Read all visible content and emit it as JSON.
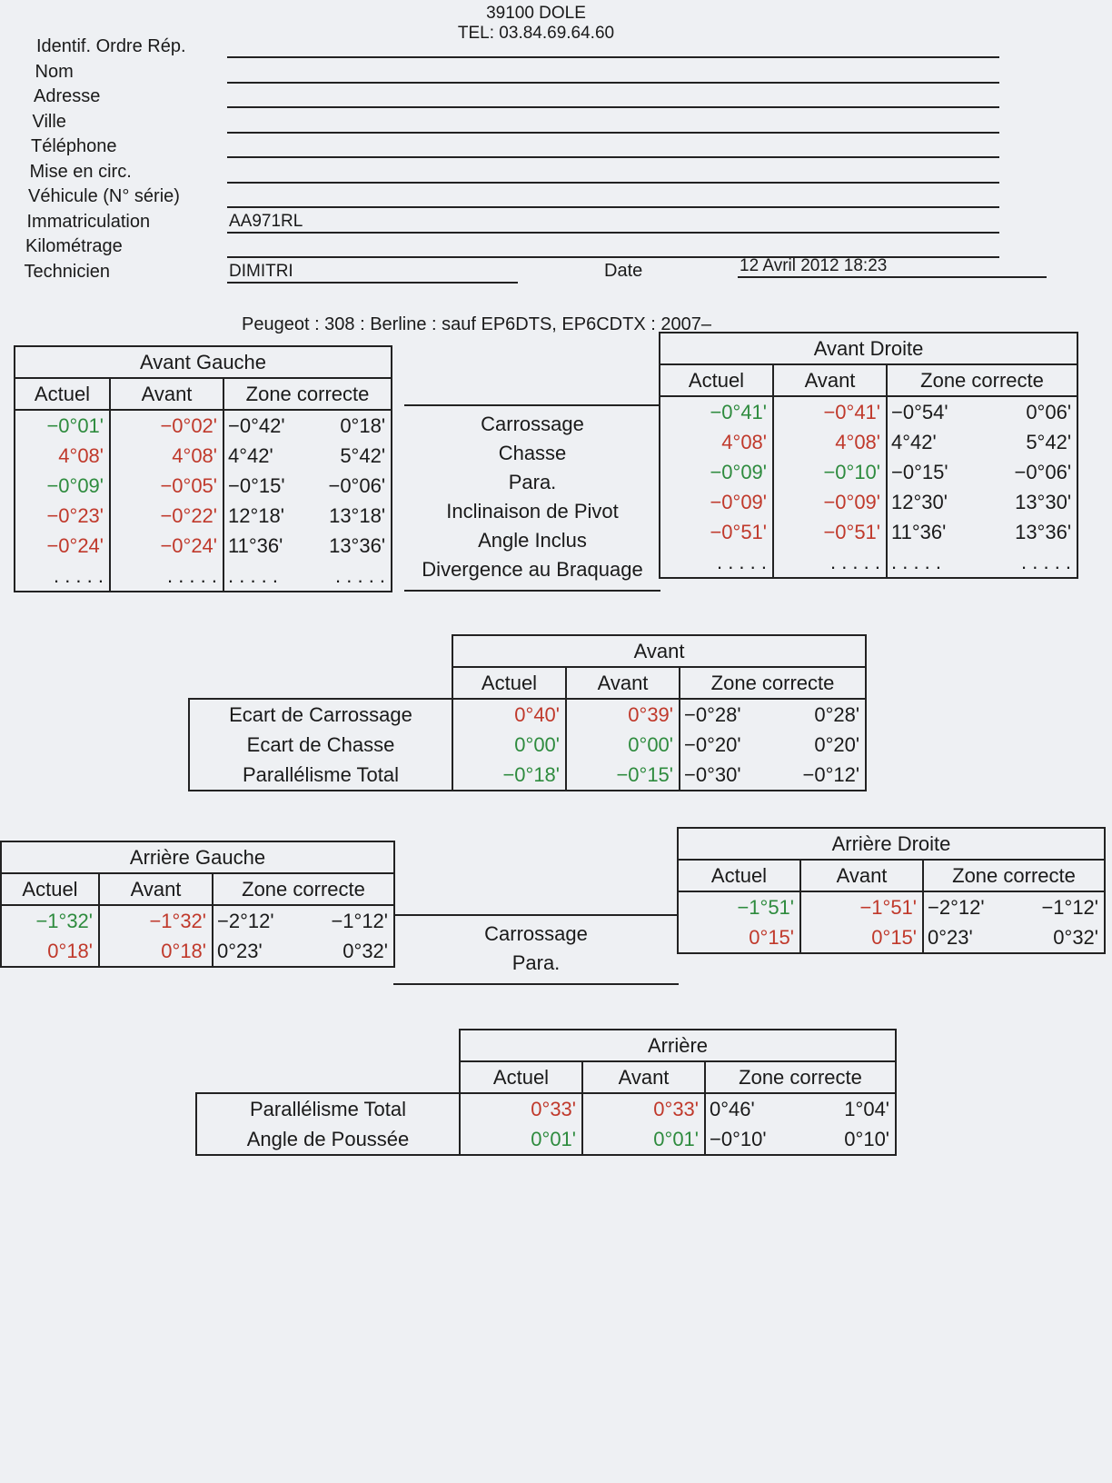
{
  "header": {
    "lines": [
      "39100 DOLE",
      "TEL: 03.84.69.64.60"
    ]
  },
  "fields": [
    {
      "label": "Identif. Ordre Rép."
    },
    {
      "label": "Nom"
    },
    {
      "label": "Adresse"
    },
    {
      "label": "Ville"
    },
    {
      "label": "Téléphone"
    },
    {
      "label": "Mise en circ."
    },
    {
      "label": "Véhicule (N° série)"
    },
    {
      "label": "Immatriculation",
      "value": "AA971RL"
    },
    {
      "label": "Kilométrage"
    },
    {
      "label": "Technicien",
      "value": "DIMITRI"
    }
  ],
  "date": {
    "label": "Date",
    "value": "12 Avril 2012 18:23"
  },
  "vehicle": "Peugeot : 308 : Berline : sauf EP6DTS, EP6CDTX : 2007–",
  "front": {
    "labels": [
      "Carrossage",
      "Chasse",
      "Para.",
      "Inclinaison de Pivot",
      "Angle Inclus",
      "Divergence au Braquage"
    ],
    "left": {
      "title": "Avant Gauche",
      "columns": [
        "Actuel",
        "Avant",
        "Zone correcte"
      ],
      "rows": [
        {
          "actual": {
            "text": "−0°01'",
            "color": "#2e8b3e"
          },
          "before": {
            "text": "−0°02'",
            "color": "#c0392b"
          },
          "min": "−0°42'",
          "max": "0°18'"
        },
        {
          "actual": {
            "text": "4°08'",
            "color": "#c0392b"
          },
          "before": {
            "text": "4°08'",
            "color": "#c0392b"
          },
          "min": "4°42'",
          "max": "5°42'"
        },
        {
          "actual": {
            "text": "−0°09'",
            "color": "#2e8b3e"
          },
          "before": {
            "text": "−0°05'",
            "color": "#c0392b"
          },
          "min": "−0°15'",
          "max": "−0°06'"
        },
        {
          "actual": {
            "text": "−0°23'",
            "color": "#c0392b"
          },
          "before": {
            "text": "−0°22'",
            "color": "#c0392b"
          },
          "min": "12°18'",
          "max": "13°18'"
        },
        {
          "actual": {
            "text": "−0°24'",
            "color": "#c0392b"
          },
          "before": {
            "text": "−0°24'",
            "color": "#c0392b"
          },
          "min": "11°36'",
          "max": "13°36'"
        },
        {
          "actual": {
            "text": ". . . . ."
          },
          "before": {
            "text": ". . . . ."
          },
          "min": ". . . . .",
          "max": ". . . . ."
        }
      ]
    },
    "right": {
      "title": "Avant Droite",
      "columns": [
        "Actuel",
        "Avant",
        "Zone correcte"
      ],
      "rows": [
        {
          "actual": {
            "text": "−0°41'",
            "color": "#2e8b3e"
          },
          "before": {
            "text": "−0°41'",
            "color": "#c0392b"
          },
          "min": "−0°54'",
          "max": "0°06'"
        },
        {
          "actual": {
            "text": "4°08'",
            "color": "#c0392b"
          },
          "before": {
            "text": "4°08'",
            "color": "#c0392b"
          },
          "min": "4°42'",
          "max": "5°42'"
        },
        {
          "actual": {
            "text": "−0°09'",
            "color": "#2e8b3e"
          },
          "before": {
            "text": "−0°10'",
            "color": "#2e8b3e"
          },
          "min": "−0°15'",
          "max": "−0°06'"
        },
        {
          "actual": {
            "text": "−0°09'",
            "color": "#c0392b"
          },
          "before": {
            "text": "−0°09'",
            "color": "#c0392b"
          },
          "min": "12°30'",
          "max": "13°30'"
        },
        {
          "actual": {
            "text": "−0°51'",
            "color": "#c0392b"
          },
          "before": {
            "text": "−0°51'",
            "color": "#c0392b"
          },
          "min": "11°36'",
          "max": "13°36'"
        },
        {
          "actual": {
            "text": ". . . . ."
          },
          "before": {
            "text": ". . . . ."
          },
          "min": ". . . . .",
          "max": ". . . . ."
        }
      ]
    }
  },
  "front_axle": {
    "title": "Avant",
    "columns": [
      "Actuel",
      "Avant",
      "Zone correcte"
    ],
    "rows": [
      {
        "label": "Ecart de Carrossage",
        "actual": {
          "text": "0°40'",
          "color": "#c0392b"
        },
        "before": {
          "text": "0°39'",
          "color": "#c0392b"
        },
        "min": "−0°28'",
        "max": "0°28'"
      },
      {
        "label": "Ecart de Chasse",
        "actual": {
          "text": "0°00'",
          "color": "#2e8b3e"
        },
        "before": {
          "text": "0°00'",
          "color": "#2e8b3e"
        },
        "min": "−0°20'",
        "max": "0°20'"
      },
      {
        "label": "Parallélisme Total",
        "actual": {
          "text": "−0°18'",
          "color": "#2e8b3e"
        },
        "before": {
          "text": "−0°15'",
          "color": "#2e8b3e"
        },
        "min": "−0°30'",
        "max": "−0°12'"
      }
    ]
  },
  "rear": {
    "labels": [
      "Carrossage",
      "Para."
    ],
    "left": {
      "title": "Arrière Gauche",
      "columns": [
        "Actuel",
        "Avant",
        "Zone correcte"
      ],
      "rows": [
        {
          "actual": {
            "text": "−1°32'",
            "color": "#2e8b3e"
          },
          "before": {
            "text": "−1°32'",
            "color": "#c0392b"
          },
          "min": "−2°12'",
          "max": "−1°12'"
        },
        {
          "actual": {
            "text": "0°18'",
            "color": "#c0392b"
          },
          "before": {
            "text": "0°18'",
            "color": "#c0392b"
          },
          "min": "0°23'",
          "max": "0°32'"
        }
      ]
    },
    "right": {
      "title": "Arrière Droite",
      "columns": [
        "Actuel",
        "Avant",
        "Zone correcte"
      ],
      "rows": [
        {
          "actual": {
            "text": "−1°51'",
            "color": "#2e8b3e"
          },
          "before": {
            "text": "−1°51'",
            "color": "#c0392b"
          },
          "min": "−2°12'",
          "max": "−1°12'"
        },
        {
          "actual": {
            "text": "0°15'",
            "color": "#c0392b"
          },
          "before": {
            "text": "0°15'",
            "color": "#c0392b"
          },
          "min": "0°23'",
          "max": "0°32'"
        }
      ]
    }
  },
  "rear_axle": {
    "title": "Arrière",
    "columns": [
      "Actuel",
      "Avant",
      "Zone correcte"
    ],
    "rows": [
      {
        "label": "Parallélisme Total",
        "actual": {
          "text": "0°33'",
          "color": "#c0392b"
        },
        "before": {
          "text": "0°33'",
          "color": "#c0392b"
        },
        "min": "0°46'",
        "max": "1°04'"
      },
      {
        "label": "Angle de Poussée",
        "actual": {
          "text": "0°01'",
          "color": "#2e8b3e"
        },
        "before": {
          "text": "0°01'",
          "color": "#2e8b3e"
        },
        "min": "−0°10'",
        "max": "0°10'"
      }
    ]
  }
}
